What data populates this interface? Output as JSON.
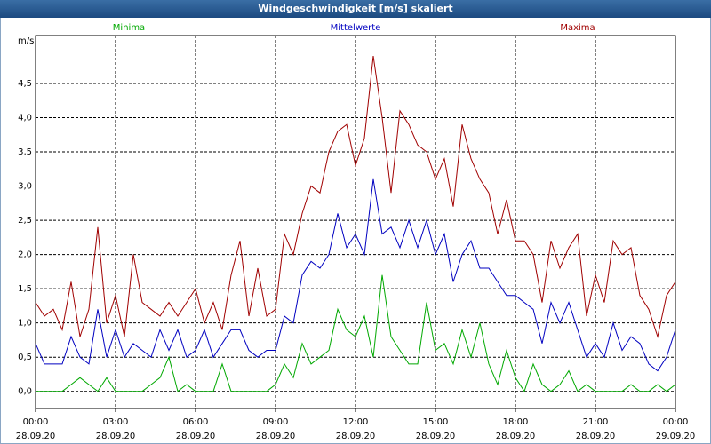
{
  "chart_data": {
    "type": "line",
    "title": "Windgeschwindigkeit [m/s] skaliert",
    "y_unit": "m/s",
    "x": [
      0,
      20,
      40,
      60,
      80,
      100,
      120,
      140,
      160,
      180,
      200,
      220,
      240,
      260,
      280,
      300,
      320,
      340,
      360,
      380,
      400,
      420,
      440,
      460,
      480,
      500,
      520,
      540,
      560,
      580,
      600,
      620,
      640,
      660,
      680,
      700,
      720,
      740,
      760,
      780,
      800,
      820,
      840,
      860,
      880,
      900,
      920,
      940,
      960,
      980,
      1000,
      1020,
      1040,
      1060,
      1080,
      1100,
      1120,
      1140,
      1160,
      1180,
      1200,
      1220,
      1240,
      1260,
      1280,
      1300,
      1320,
      1340,
      1360,
      1380,
      1400,
      1420,
      1440
    ],
    "xlim": [
      0,
      1440
    ],
    "xticks": [
      {
        "value": 0,
        "label": "00:00"
      },
      {
        "value": 180,
        "label": "03:00"
      },
      {
        "value": 360,
        "label": "06:00"
      },
      {
        "value": 540,
        "label": "09:00"
      },
      {
        "value": 720,
        "label": "12:00"
      },
      {
        "value": 900,
        "label": "15:00"
      },
      {
        "value": 1080,
        "label": "18:00"
      },
      {
        "value": 1260,
        "label": "21:00"
      },
      {
        "value": 1440,
        "label": "00:00"
      }
    ],
    "xtick_dates": [
      "28.09.20",
      "28.09.20",
      "28.09.20",
      "28.09.20",
      "28.09.20",
      "28.09.20",
      "28.09.20",
      "28.09.20",
      "29.09.20"
    ],
    "ylim": [
      -0.25,
      5.2
    ],
    "yticks": [
      {
        "value": 0,
        "label": "0,0"
      },
      {
        "value": 0.5,
        "label": "0,5"
      },
      {
        "value": 1,
        "label": "1,0"
      },
      {
        "value": 1.5,
        "label": "1,5"
      },
      {
        "value": 2,
        "label": "2,0"
      },
      {
        "value": 2.5,
        "label": "2,5"
      },
      {
        "value": 3,
        "label": "3,0"
      },
      {
        "value": 3.5,
        "label": "3,5"
      },
      {
        "value": 4,
        "label": "4,0"
      },
      {
        "value": 4.5,
        "label": "4,5"
      }
    ],
    "grid": true,
    "series": [
      {
        "name": "Minima",
        "color": "#00a800",
        "values": [
          0,
          0,
          0,
          0,
          0.1,
          0.2,
          0.1,
          0,
          0.2,
          0,
          0,
          0,
          0,
          0.1,
          0.2,
          0.5,
          0,
          0.1,
          0,
          0,
          0,
          0.4,
          0,
          0,
          0,
          0,
          0,
          0.1,
          0.4,
          0.2,
          0.7,
          0.4,
          0.5,
          0.6,
          1.2,
          0.9,
          0.8,
          1.1,
          0.5,
          1.7,
          0.8,
          0.6,
          0.4,
          0.4,
          1.3,
          0.6,
          0.7,
          0.4,
          0.9,
          0.5,
          1.0,
          0.4,
          0.1,
          0.6,
          0.2,
          0,
          0.4,
          0.1,
          0,
          0.1,
          0.3,
          0,
          0.1,
          0,
          0,
          0,
          0,
          0.1,
          0,
          0,
          0.1,
          0,
          0.1
        ]
      },
      {
        "name": "Mittelwerte",
        "color": "#0000c0",
        "values": [
          0.7,
          0.4,
          0.4,
          0.4,
          0.8,
          0.5,
          0.4,
          1.2,
          0.5,
          0.9,
          0.5,
          0.7,
          0.6,
          0.5,
          0.9,
          0.6,
          0.9,
          0.5,
          0.6,
          0.9,
          0.5,
          0.7,
          0.9,
          0.9,
          0.6,
          0.5,
          0.6,
          0.6,
          1.1,
          1.0,
          1.7,
          1.9,
          1.8,
          2.0,
          2.6,
          2.1,
          2.3,
          2.0,
          3.1,
          2.3,
          2.4,
          2.1,
          2.5,
          2.1,
          2.5,
          2.0,
          2.3,
          1.6,
          2.0,
          2.2,
          1.8,
          1.8,
          1.6,
          1.4,
          1.4,
          1.3,
          1.2,
          0.7,
          1.3,
          1.0,
          1.3,
          0.9,
          0.5,
          0.7,
          0.5,
          1.0,
          0.6,
          0.8,
          0.7,
          0.4,
          0.3,
          0.5,
          0.9
        ]
      },
      {
        "name": "Maxima",
        "color": "#a00000",
        "values": [
          1.3,
          1.1,
          1.2,
          0.9,
          1.6,
          0.8,
          1.2,
          2.4,
          1.0,
          1.4,
          0.8,
          2.0,
          1.3,
          1.2,
          1.1,
          1.3,
          1.1,
          1.3,
          1.5,
          1.0,
          1.3,
          0.9,
          1.7,
          2.2,
          1.1,
          1.8,
          1.1,
          1.2,
          2.3,
          2.0,
          2.6,
          3.0,
          2.9,
          3.5,
          3.8,
          3.9,
          3.3,
          3.7,
          4.9,
          4.0,
          2.9,
          4.1,
          3.9,
          3.6,
          3.5,
          3.1,
          3.4,
          2.7,
          3.9,
          3.4,
          3.1,
          2.9,
          2.3,
          2.8,
          2.2,
          2.2,
          2.0,
          1.3,
          2.2,
          1.8,
          2.1,
          2.3,
          1.1,
          1.7,
          1.3,
          2.2,
          2.0,
          2.1,
          1.4,
          1.2,
          0.8,
          1.4,
          1.6
        ]
      }
    ]
  }
}
